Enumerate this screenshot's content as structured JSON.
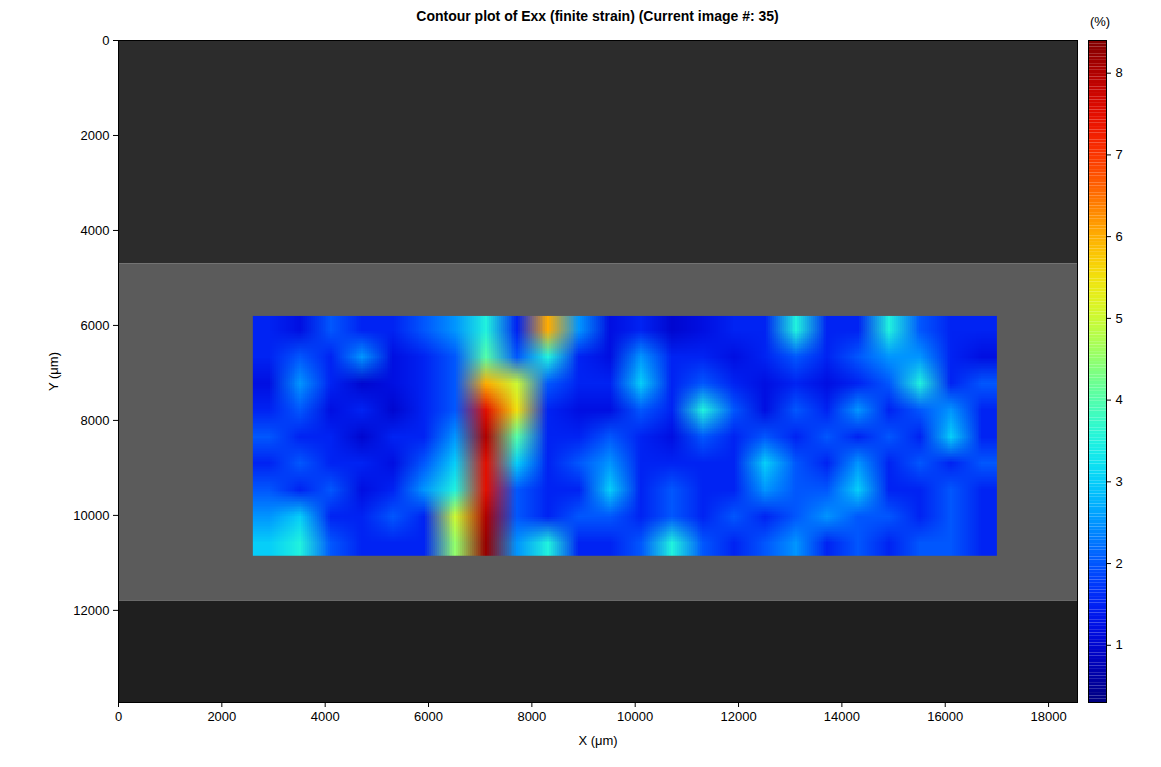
{
  "chart_data": {
    "type": "heatmap",
    "title": "Contour plot of Exx (finite strain) (Current image #: 35)",
    "x_label": "X (μm)",
    "y_label": "Y (μm)",
    "xlim": [
      0,
      18560
    ],
    "xticks": [
      0,
      2000,
      4000,
      6000,
      8000,
      10000,
      12000,
      14000,
      16000,
      18000
    ],
    "ylim": [
      0,
      13940
    ],
    "yticks": [
      0,
      2000,
      4000,
      6000,
      8000,
      10000,
      12000
    ],
    "specimen_y": [
      4700,
      11800
    ],
    "cells": {
      "x_range": [
        2600,
        17000
      ],
      "y_range": [
        5800,
        10850
      ],
      "values": [
        [
          1.5,
          1.2,
          2,
          1.5,
          1.5,
          2,
          2.5,
          3.5,
          1.5,
          6,
          2.5,
          1.2,
          1.5,
          1,
          1.2,
          1.5,
          1.5,
          3.5,
          1.5,
          1.5,
          3.5,
          2,
          1.5,
          1.5
        ],
        [
          1.5,
          2,
          1.5,
          2.5,
          1.2,
          1.5,
          2,
          4,
          2,
          3.5,
          1.5,
          1.2,
          2.5,
          1.5,
          1.5,
          1.2,
          1.5,
          2,
          1.5,
          2,
          2.5,
          2.5,
          1.5,
          1.2
        ],
        [
          1.2,
          2.5,
          1.5,
          1,
          1.2,
          1.5,
          2,
          6,
          5,
          2,
          1.5,
          1.5,
          3,
          1.5,
          2,
          1.5,
          1.2,
          1.5,
          1.2,
          1.5,
          2,
          3.5,
          1.5,
          2
        ],
        [
          1.5,
          2,
          1.2,
          1.5,
          1,
          1.5,
          2,
          7.5,
          5.5,
          1.5,
          1.2,
          1.2,
          2,
          1.5,
          3.5,
          2,
          1.2,
          2,
          1.5,
          2.5,
          1.5,
          2,
          2.5,
          1.5
        ],
        [
          2,
          1.5,
          1.5,
          1,
          1.5,
          1.5,
          2.5,
          8,
          4,
          1.5,
          1.5,
          2,
          1.5,
          1.2,
          2,
          1.5,
          2,
          1.5,
          2,
          1.5,
          2,
          1.5,
          3,
          1.5
        ],
        [
          1.5,
          2,
          1.5,
          1.5,
          1.2,
          2,
          3,
          7.5,
          3,
          1.5,
          2,
          2.5,
          1.5,
          1.5,
          1.5,
          1.5,
          3,
          2,
          1.5,
          2.5,
          1.5,
          2,
          1.5,
          2
        ],
        [
          2,
          1.5,
          2,
          1.2,
          1.5,
          2.5,
          3.5,
          7.5,
          2,
          1.5,
          1.5,
          3,
          1.5,
          2,
          1.5,
          1.5,
          2.5,
          2,
          2,
          3,
          1.5,
          1.5,
          2,
          1.5
        ],
        [
          2.5,
          3,
          1.5,
          1.5,
          2,
          1.5,
          5,
          8,
          2,
          1.5,
          2,
          2,
          1.5,
          2,
          1.5,
          2,
          1.5,
          2,
          2.5,
          2,
          2,
          1.5,
          2,
          1.5
        ],
        [
          3,
          3.5,
          2,
          1.5,
          1.5,
          1.5,
          4.5,
          8.2,
          2.5,
          3.5,
          1.5,
          1.5,
          2,
          3.5,
          2,
          1.5,
          2,
          2.5,
          1.5,
          2,
          1.5,
          2,
          2,
          1.5
        ]
      ]
    },
    "colorbar": {
      "label": "(%)",
      "range": [
        0.3,
        8.4
      ],
      "ticks": [
        1,
        2,
        3,
        4,
        5,
        6,
        7,
        8
      ]
    }
  }
}
